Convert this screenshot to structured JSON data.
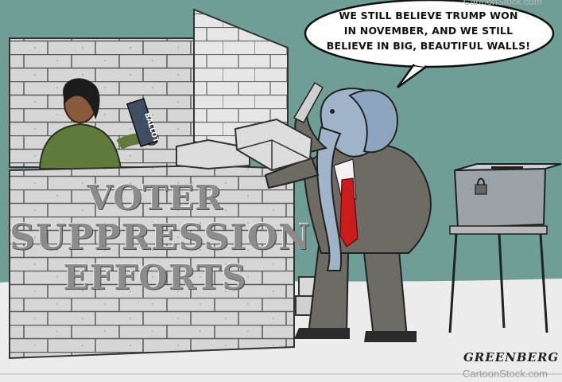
{
  "watermark_top": "CartoonStock.com",
  "speech_bubble": {
    "lines": [
      "WE STILL BELIEVE TRUMP WON",
      "IN NOVEMBER, AND WE STILL",
      "BELIEVE IN BIG, BEAUTIFUL WALLS!"
    ]
  },
  "wall_label": {
    "line1": "VOTER",
    "line2": "SUPPRESSION",
    "line3": "EFFORTS"
  },
  "ballot_label": "BALLOT",
  "signature": "GREENBERG",
  "watermark_bottom": "CartoonStock.com",
  "colors": {
    "sky": "#6e9e96",
    "ground": "#ececec",
    "brick": "#d4d4d4",
    "brick_line": "#5a5a5a",
    "elephant": "#9fb4c9",
    "suit": "#6e6a64",
    "tie": "#cc1b1b",
    "woman_sweater": "#5f7a3a",
    "ballot_box": "#9aa2a7"
  }
}
